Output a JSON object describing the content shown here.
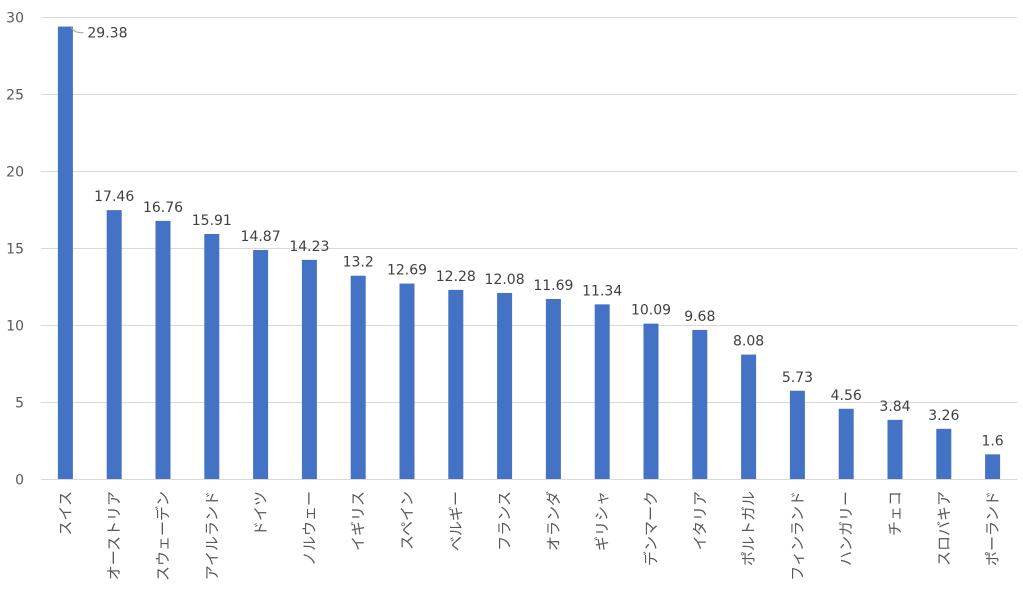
{
  "chart_data": {
    "type": "bar",
    "categories": [
      "スイス",
      "オーストリア",
      "スウェーデン",
      "アイルランド",
      "ドイツ",
      "ノルウェー",
      "イギリス",
      "スペイン",
      "ベルギー",
      "フランス",
      "オランダ",
      "ギリシャ",
      "デンマーク",
      "イタリア",
      "ポルトガル",
      "フィンランド",
      "ハンガリー",
      "チェコ",
      "スロバキア",
      "ポーランド"
    ],
    "values": [
      29.38,
      17.46,
      16.76,
      15.91,
      14.87,
      14.23,
      13.2,
      12.69,
      12.28,
      12.08,
      11.69,
      11.34,
      10.09,
      9.68,
      8.08,
      5.73,
      4.56,
      3.84,
      3.26,
      1.6
    ],
    "data_labels": [
      "29.38",
      "17.46",
      "16.76",
      "15.91",
      "14.87",
      "14.23",
      "13.2",
      "12.69",
      "12.28",
      "12.08",
      "11.69",
      "11.34",
      "10.09",
      "9.68",
      "8.08",
      "5.73",
      "4.56",
      "3.84",
      "3.26",
      "1.6"
    ],
    "y_ticks": [
      "0",
      "5",
      "10",
      "15",
      "20",
      "25",
      "30"
    ],
    "ylim": [
      0,
      30
    ],
    "grid": true,
    "legend": "none",
    "title": "",
    "xlabel": "",
    "ylabel": "",
    "colors": {
      "bar": "#4472C4",
      "grid": "#D9D9D9",
      "axis_text": "#595959"
    }
  }
}
